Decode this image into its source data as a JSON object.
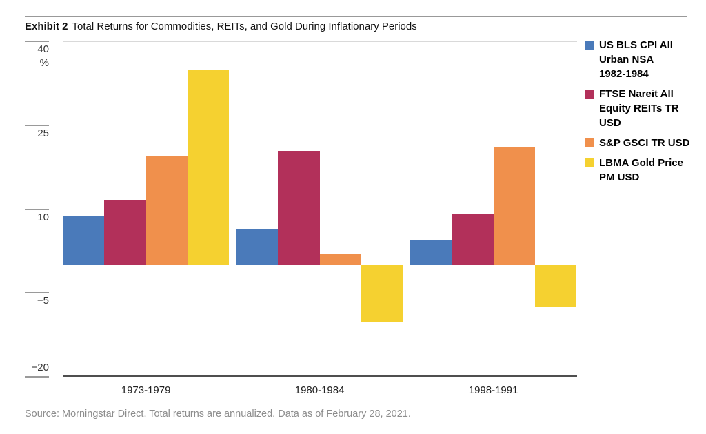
{
  "header": {
    "exhibit": "Exhibit 2",
    "title": "Total Returns for Commodities, REITs, and Gold During Inflationary Periods"
  },
  "source": "Source: Morningstar Direct. Total returns are annualized. Data as of February 28, 2021.",
  "colors": {
    "cpi_blue": "#4a7aba",
    "reits_crimson": "#b2305a",
    "gsci_orange": "#f0904c",
    "gold_yellow": "#f5d130",
    "gridline": "#d9d9d9",
    "axis": "#4f4f4f",
    "tick": "#9a9a9a"
  },
  "chart_data": {
    "type": "bar",
    "title": "Total Returns for Commodities, REITs, and Gold During Inflationary Periods",
    "unit": "%",
    "categories": [
      "1973-1979",
      "1980-1984",
      "1998-1991"
    ],
    "series": [
      {
        "name": "US BLS CPI All Urban NSA 1982-1984",
        "color": "#4a7aba",
        "values": [
          8.8,
          6.5,
          4.5
        ]
      },
      {
        "name": "FTSE Nareit All Equity REITs TR USD",
        "color": "#b2305a",
        "values": [
          11.5,
          20.4,
          9.1
        ]
      },
      {
        "name": "S&P GSCI TR USD",
        "color": "#f0904c",
        "values": [
          19.4,
          2.1,
          21.0
        ]
      },
      {
        "name": "LBMA Gold Price PM USD",
        "color": "#f5d130",
        "values": [
          34.8,
          -10.1,
          -7.6
        ]
      }
    ],
    "ylim": [
      -20,
      40
    ],
    "y_ticks": [
      {
        "value": 40,
        "label": "40"
      },
      {
        "value": 25,
        "label": "25"
      },
      {
        "value": 10,
        "label": "10"
      },
      {
        "value": -5,
        "label": "−5"
      },
      {
        "value": -20,
        "label": "−20"
      }
    ],
    "grid": true,
    "legend_position": "right"
  },
  "legend": {
    "items": [
      {
        "color": "#4a7aba",
        "lines": [
          "US BLS CPI All",
          "Urban NSA",
          "1982-1984"
        ]
      },
      {
        "color": "#b2305a",
        "lines": [
          "FTSE Nareit All",
          "Equity REITs TR",
          "USD"
        ]
      },
      {
        "color": "#f0904c",
        "lines": [
          "S&P GSCI TR USD"
        ]
      },
      {
        "color": "#f5d130",
        "lines": [
          "LBMA Gold Price",
          "PM USD"
        ]
      }
    ]
  }
}
